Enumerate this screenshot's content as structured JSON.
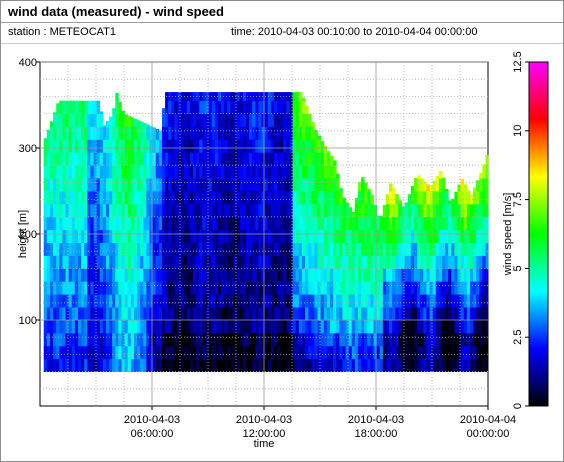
{
  "header": {
    "title": "wind data (measured) - wind speed",
    "station": "station : METEOCAT1",
    "time_range": "time: 2010-04-03 00:10:00 to 2010-04-04 00:00:00"
  },
  "chart_data": {
    "type": "heatmap",
    "title": "wind data (measured) - wind speed",
    "xlabel": "time",
    "ylabel": "height [m]",
    "colorbar_label": "wind speed [m/s]",
    "xlim": [
      0,
      24
    ],
    "ylim": [
      0,
      400
    ],
    "colorbar_range": [
      0,
      12.5
    ],
    "x_ticks": [
      {
        "x": 6,
        "line1": "2010-04-03",
        "line2": "06:00:00"
      },
      {
        "x": 12,
        "line1": "2010-04-03",
        "line2": "12:00:00"
      },
      {
        "x": 18,
        "line1": "2010-04-03",
        "line2": "18:00:00"
      },
      {
        "x": 24,
        "line1": "2010-04-04",
        "line2": "00:00:00"
      }
    ],
    "y_ticks": [
      "100",
      "200",
      "300",
      "400"
    ],
    "colorbar_ticks": [
      "0",
      "2.5",
      "5",
      "7.5",
      "10",
      "12.5"
    ],
    "grid": true,
    "height_min": 40,
    "time_step_minutes": 10,
    "colormap": [
      "#000000",
      "#00008b",
      "#0000ff",
      "#0080ff",
      "#00ffff",
      "#00ff80",
      "#00ff00",
      "#80ff00",
      "#ffff00",
      "#ff8000",
      "#ff0000",
      "#ff0080",
      "#ff00ff"
    ],
    "data_top_m": [
      {
        "t": 0.0,
        "h": 295
      },
      {
        "t": 0.6,
        "h": 330
      },
      {
        "t": 1.0,
        "h": 355
      },
      {
        "t": 3.2,
        "h": 355
      },
      {
        "t": 3.4,
        "h": 325
      },
      {
        "t": 3.9,
        "h": 340
      },
      {
        "t": 4.1,
        "h": 365
      },
      {
        "t": 4.5,
        "h": 340
      },
      {
        "t": 6.5,
        "h": 320
      },
      {
        "t": 6.7,
        "h": 365
      },
      {
        "t": 14.0,
        "h": 365
      },
      {
        "t": 14.8,
        "h": 320
      },
      {
        "t": 15.2,
        "h": 305
      },
      {
        "t": 15.8,
        "h": 285
      },
      {
        "t": 16.2,
        "h": 245
      },
      {
        "t": 16.8,
        "h": 225
      },
      {
        "t": 17.2,
        "h": 270
      },
      {
        "t": 17.8,
        "h": 245
      },
      {
        "t": 18.2,
        "h": 215
      },
      {
        "t": 18.8,
        "h": 260
      },
      {
        "t": 19.5,
        "h": 230
      },
      {
        "t": 20.2,
        "h": 270
      },
      {
        "t": 20.9,
        "h": 255
      },
      {
        "t": 21.5,
        "h": 275
      },
      {
        "t": 22.0,
        "h": 235
      },
      {
        "t": 22.6,
        "h": 265
      },
      {
        "t": 23.1,
        "h": 245
      },
      {
        "t": 23.6,
        "h": 270
      },
      {
        "t": 24.0,
        "h": 295
      }
    ]
  }
}
